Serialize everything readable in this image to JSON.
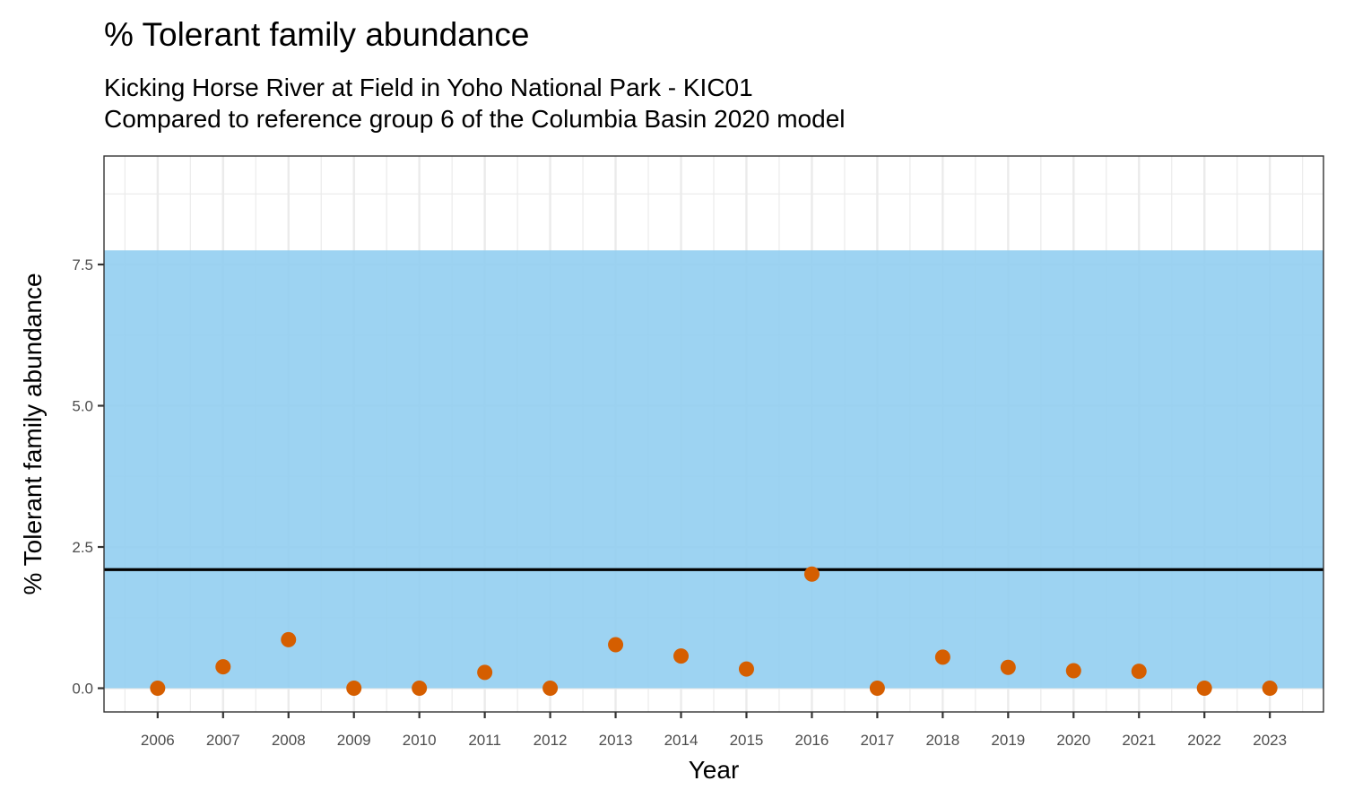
{
  "chart_data": {
    "type": "scatter",
    "title": "% Tolerant family abundance",
    "subtitle_lines": [
      "Kicking Horse River at Field in Yoho National Park - KIC01",
      "Compared to reference group 6 of the Columbia Basin 2020 model"
    ],
    "xlabel": "Year",
    "ylabel": "% Tolerant family abundance",
    "x": [
      2006,
      2007,
      2008,
      2009,
      2010,
      2011,
      2012,
      2013,
      2014,
      2015,
      2016,
      2017,
      2018,
      2019,
      2020,
      2021,
      2022,
      2023
    ],
    "y": [
      0.0,
      0.38,
      0.86,
      0.0,
      0.0,
      0.28,
      0.0,
      0.77,
      0.57,
      0.34,
      2.02,
      0.0,
      0.55,
      0.37,
      0.31,
      0.3,
      0.0,
      0.0
    ],
    "xlim": [
      2005.18,
      2023.82
    ],
    "ylim": [
      -0.42,
      9.42
    ],
    "yticks": [
      0.0,
      2.5,
      5.0,
      7.5
    ],
    "ytick_labels": [
      "0.0",
      "2.5",
      "5.0",
      "7.5"
    ],
    "reference_band": {
      "ymin": 0.0,
      "ymax": 7.75,
      "color": "#8fcdf0"
    },
    "reference_line": {
      "y": 2.1,
      "color": "#000000"
    },
    "point_color": "#d55e00",
    "grid": true,
    "legend": "none"
  }
}
